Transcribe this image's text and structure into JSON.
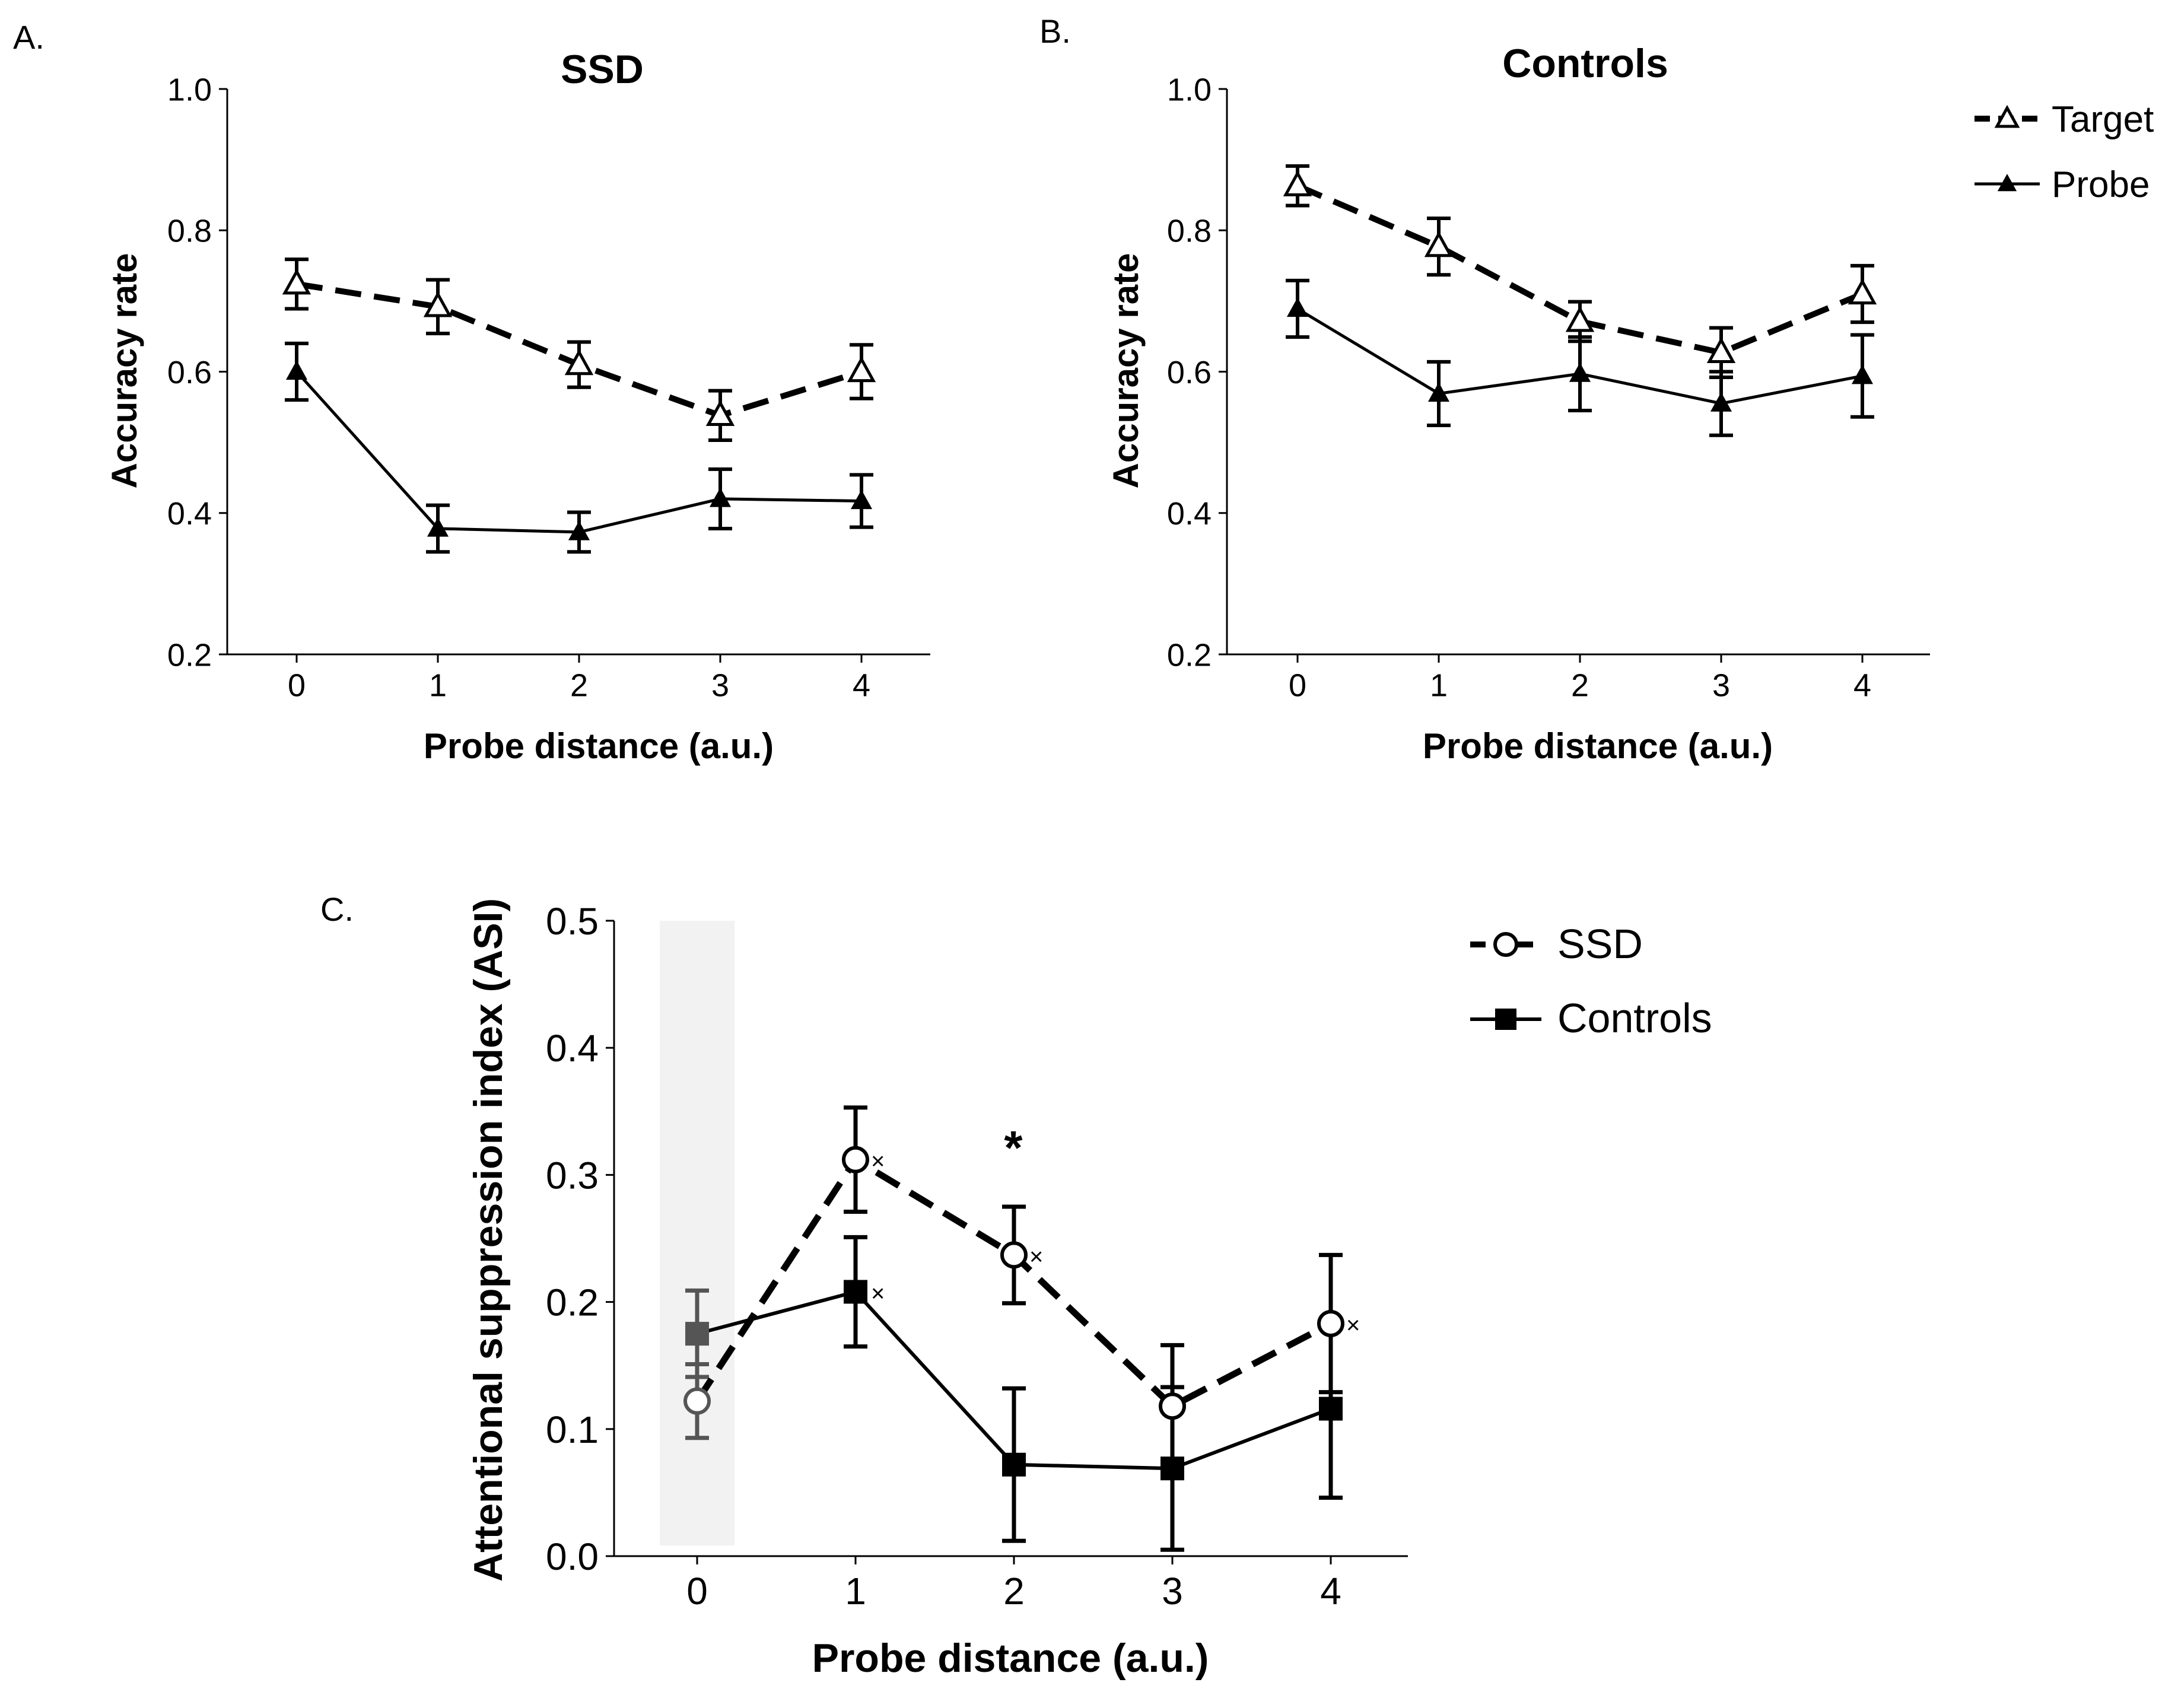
{
  "panels": {
    "a": {
      "label": "A."
    },
    "b": {
      "label": "B."
    },
    "c": {
      "label": "C."
    }
  },
  "chart_data": [
    {
      "id": "A",
      "type": "line",
      "title": "SSD",
      "xlabel": "Probe distance (a.u.)",
      "ylabel": "Accuracy rate",
      "categories": [
        "0",
        "1",
        "2",
        "3",
        "4"
      ],
      "ylim": [
        0.2,
        1.0
      ],
      "yticks": [
        "0.2",
        "0.4",
        "0.6",
        "0.8",
        "1.0"
      ],
      "series": [
        {
          "name": "Target",
          "marker": "open-triangle",
          "dashed": true,
          "values": [
            0.724,
            0.692,
            0.61,
            0.538,
            0.6
          ],
          "errors": [
            0.035,
            0.038,
            0.032,
            0.035,
            0.038
          ]
        },
        {
          "name": "Probe",
          "marker": "filled-triangle",
          "dashed": false,
          "values": [
            0.6,
            0.378,
            0.373,
            0.42,
            0.417
          ],
          "errors": [
            0.04,
            0.033,
            0.028,
            0.042,
            0.037
          ]
        }
      ]
    },
    {
      "id": "B",
      "type": "line",
      "title": "Controls",
      "xlabel": "Probe distance (a.u.)",
      "ylabel": "Accuracy rate",
      "categories": [
        "0",
        "1",
        "2",
        "3",
        "4"
      ],
      "ylim": [
        0.2,
        1.0
      ],
      "yticks": [
        "0.2",
        "0.4",
        "0.6",
        "0.8",
        "1.0"
      ],
      "legend": [
        "Target",
        "Probe"
      ],
      "series": [
        {
          "name": "Target",
          "marker": "open-triangle",
          "dashed": true,
          "values": [
            0.863,
            0.777,
            0.671,
            0.627,
            0.71
          ],
          "errors": [
            0.028,
            0.04,
            0.028,
            0.035,
            0.04
          ]
        },
        {
          "name": "Probe",
          "marker": "filled-triangle",
          "dashed": false,
          "values": [
            0.689,
            0.569,
            0.597,
            0.555,
            0.594
          ],
          "errors": [
            0.04,
            0.045,
            0.052,
            0.045,
            0.058
          ]
        }
      ]
    },
    {
      "id": "C",
      "type": "line",
      "title": "",
      "xlabel": "Probe distance (a.u.)",
      "ylabel": "Attentional suppression index (ASI)",
      "categories": [
        "0",
        "1",
        "2",
        "3",
        "4"
      ],
      "ylim": [
        0.0,
        0.5
      ],
      "yticks": [
        "0.0",
        "0.1",
        "0.2",
        "0.3",
        "0.4",
        "0.5"
      ],
      "shaded_category": "0",
      "legend": [
        "SSD",
        "Controls"
      ],
      "series": [
        {
          "name": "SSD",
          "marker": "open-circle",
          "dashed": true,
          "values": [
            0.122,
            0.312,
            0.237,
            0.118,
            0.183
          ],
          "errors": [
            0.029,
            0.041,
            0.038,
            0.048,
            0.054
          ]
        },
        {
          "name": "Controls",
          "marker": "filled-square",
          "dashed": false,
          "values": [
            0.175,
            0.208,
            0.072,
            0.069,
            0.116
          ],
          "errors": [
            0.034,
            0.043,
            0.06,
            0.064,
            0.07
          ]
        }
      ],
      "significance": {
        "category": "2",
        "symbol": "*"
      },
      "cross_marks": [
        {
          "series": "SSD",
          "category": "1",
          "symbol": "×"
        },
        {
          "series": "SSD",
          "category": "2",
          "symbol": "×"
        },
        {
          "series": "SSD",
          "category": "4",
          "symbol": "×"
        },
        {
          "series": "Controls",
          "category": "1",
          "symbol": "×"
        }
      ]
    }
  ]
}
